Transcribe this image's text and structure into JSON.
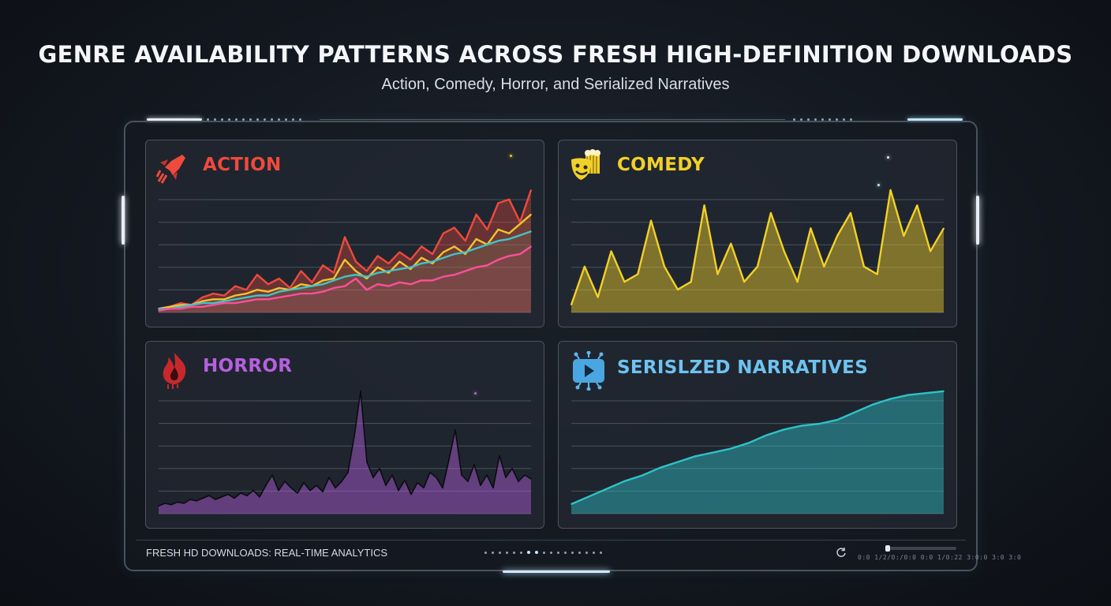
{
  "title": "GENRE AVAILABILITY PATTERNS ACROSS FRESH HIGH-DEFINITION DOWNLOADS",
  "subtitle": "Action, Comedy, Horror, and Serialized Narratives",
  "footer": {
    "label": "FRESH HD DOWNLOADS: REAL-TIME ANALYTICS",
    "status_text": "0:0 1/2/0:/0:0 0:0 1/0:22 3:0:0 3:0 3:0"
  },
  "colors": {
    "action": "#ef4a3c",
    "comedy": "#f2d02a",
    "horror": "#b660e0",
    "serialized": "#5fb6ea",
    "frame_glow": "#bfe9ff"
  },
  "icons": {
    "action": "rocket-icon",
    "comedy": "popcorn-mask-icon",
    "horror": "flame-icon",
    "serialized": "video-network-icon",
    "refresh": "refresh-icon"
  },
  "chart_data": [
    {
      "type": "line",
      "title": "ACTION",
      "series": [
        {
          "color": "#ef4a3c",
          "values": [
            2,
            3,
            5,
            4,
            8,
            10,
            9,
            14,
            12,
            20,
            15,
            18,
            13,
            22,
            16,
            25,
            21,
            40,
            27,
            22,
            30,
            26,
            32,
            28,
            35,
            31,
            42,
            45,
            38,
            52,
            44,
            58,
            60,
            48,
            65
          ]
        },
        {
          "color": "#f2c230",
          "values": [
            2,
            3,
            4,
            4,
            6,
            7,
            7,
            9,
            10,
            12,
            11,
            13,
            12,
            15,
            14,
            17,
            18,
            28,
            22,
            18,
            24,
            21,
            27,
            23,
            29,
            26,
            32,
            35,
            31,
            39,
            36,
            44,
            42,
            47,
            52
          ]
        },
        {
          "color": "#43c2c9",
          "values": [
            2,
            2,
            3,
            4,
            5,
            5,
            6,
            7,
            8,
            9,
            9,
            11,
            12,
            13,
            14,
            15,
            17,
            19,
            20,
            19,
            21,
            22,
            23,
            24,
            26,
            27,
            29,
            31,
            32,
            34,
            36,
            38,
            39,
            41,
            43
          ]
        },
        {
          "color": "#ff4f9a",
          "values": [
            1,
            2,
            2,
            3,
            3,
            4,
            5,
            5,
            6,
            7,
            7,
            8,
            9,
            10,
            10,
            11,
            13,
            14,
            18,
            12,
            15,
            14,
            16,
            15,
            17,
            17,
            19,
            20,
            22,
            24,
            25,
            28,
            30,
            31,
            35
          ]
        }
      ]
    },
    {
      "type": "area",
      "title": "COMEDY",
      "series": [
        {
          "color": "#f2d02a",
          "values": [
            5,
            30,
            10,
            40,
            20,
            25,
            60,
            30,
            15,
            20,
            70,
            25,
            45,
            20,
            30,
            65,
            40,
            20,
            55,
            30,
            50,
            65,
            30,
            25,
            80,
            50,
            70,
            40,
            55
          ]
        }
      ]
    },
    {
      "type": "area",
      "title": "HORROR",
      "series": [
        {
          "color": "#b660e0",
          "values": [
            6,
            8,
            7,
            9,
            8,
            11,
            10,
            12,
            14,
            11,
            13,
            15,
            12,
            16,
            14,
            18,
            13,
            22,
            30,
            18,
            25,
            20,
            16,
            24,
            18,
            22,
            17,
            28,
            20,
            25,
            32,
            60,
            95,
            40,
            28,
            35,
            22,
            30,
            18,
            26,
            15,
            24,
            20,
            32,
            28,
            20,
            42,
            65,
            30,
            25,
            38,
            22,
            30,
            20,
            45,
            28,
            35,
            25,
            30,
            27
          ]
        }
      ]
    },
    {
      "type": "area",
      "title": "SERISLZED NARRATIVES",
      "series": [
        {
          "color": "#2ec2c8",
          "values": [
            5,
            9,
            13,
            17,
            20,
            24,
            27,
            30,
            32,
            34,
            37,
            41,
            44,
            46,
            47,
            49,
            53,
            57,
            60,
            62,
            63,
            64
          ]
        }
      ]
    }
  ]
}
